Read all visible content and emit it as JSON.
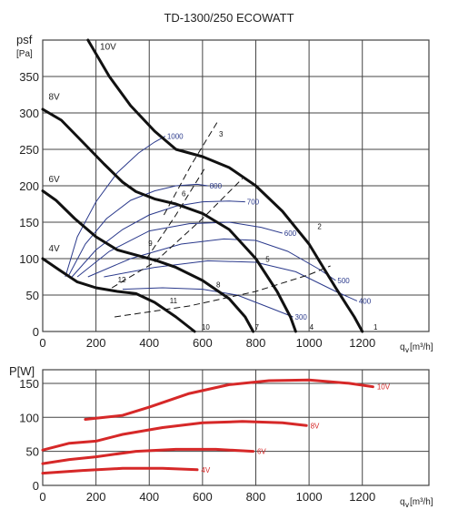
{
  "title": "TD-1300/250 ECOWATT",
  "colors": {
    "grid": "#444444",
    "pressure_curve": "#111111",
    "iso_line": "#2b3a8c",
    "system_line": "#111111",
    "power_curve": "#d62828",
    "power_label": "#d62828"
  },
  "chart_data": [
    {
      "type": "line",
      "title": "TD-1300/250 ECOWATT",
      "ylabel_top": "psf",
      "ylabel_unit": "[Pa]",
      "xlabel_prefix": "q",
      "xlabel_sub": "v",
      "xlabel_unit": "[m³/h]",
      "xlim": [
        0,
        1450
      ],
      "ylim": [
        0,
        400
      ],
      "x_ticks": [
        0,
        200,
        400,
        600,
        800,
        1000,
        1200
      ],
      "y_ticks": [
        0,
        50,
        100,
        150,
        200,
        250,
        300,
        350
      ],
      "grid": true,
      "series": [
        {
          "name": "10V",
          "points": [
            [
              170,
              400
            ],
            [
              250,
              350
            ],
            [
              330,
              310
            ],
            [
              420,
              275
            ],
            [
              500,
              250
            ],
            [
              600,
              240
            ],
            [
              700,
              225
            ],
            [
              800,
              200
            ],
            [
              900,
              165
            ],
            [
              1000,
              120
            ],
            [
              1100,
              60
            ],
            [
              1170,
              20
            ],
            [
              1200,
              0
            ]
          ]
        },
        {
          "name": "8V",
          "points": [
            [
              0,
              305
            ],
            [
              70,
              290
            ],
            [
              150,
              260
            ],
            [
              230,
              230
            ],
            [
              300,
              205
            ],
            [
              350,
              192
            ],
            [
              420,
              182
            ],
            [
              500,
              175
            ],
            [
              600,
              162
            ],
            [
              700,
              140
            ],
            [
              800,
              100
            ],
            [
              880,
              55
            ],
            [
              930,
              20
            ],
            [
              950,
              0
            ]
          ]
        },
        {
          "name": "6V",
          "points": [
            [
              0,
              193
            ],
            [
              50,
              180
            ],
            [
              120,
              155
            ],
            [
              200,
              130
            ],
            [
              280,
              112
            ],
            [
              360,
              104
            ],
            [
              430,
              97
            ],
            [
              500,
              88
            ],
            [
              600,
              70
            ],
            [
              700,
              45
            ],
            [
              760,
              20
            ],
            [
              790,
              0
            ]
          ]
        },
        {
          "name": "4V",
          "points": [
            [
              0,
              100
            ],
            [
              60,
              85
            ],
            [
              130,
              68
            ],
            [
              200,
              60
            ],
            [
              280,
              55
            ],
            [
              350,
              52
            ],
            [
              420,
              40
            ],
            [
              500,
              20
            ],
            [
              570,
              0
            ]
          ]
        }
      ],
      "iso_lines": [
        {
          "label": "1000",
          "points": [
            [
              85,
              75
            ],
            [
              130,
              130
            ],
            [
              200,
              178
            ],
            [
              280,
              218
            ],
            [
              360,
              245
            ],
            [
              420,
              260
            ],
            [
              460,
              268
            ]
          ]
        },
        {
          "label": "800",
          "points": [
            [
              95,
              75
            ],
            [
              160,
              120
            ],
            [
              240,
              155
            ],
            [
              330,
              180
            ],
            [
              420,
              193
            ],
            [
              500,
              200
            ],
            [
              580,
              202
            ],
            [
              620,
              200
            ]
          ]
        },
        {
          "label": "700",
          "points": [
            [
              110,
              75
            ],
            [
              200,
              112
            ],
            [
              300,
              140
            ],
            [
              400,
              160
            ],
            [
              500,
              172
            ],
            [
              600,
              178
            ],
            [
              700,
              179
            ],
            [
              760,
              178
            ]
          ]
        },
        {
          "label": "600",
          "points": [
            [
              130,
              75
            ],
            [
              250,
              110
            ],
            [
              400,
              138
            ],
            [
              550,
              148
            ],
            [
              700,
              150
            ],
            [
              820,
              143
            ],
            [
              900,
              135
            ]
          ]
        },
        {
          "label": "500",
          "points": [
            [
              170,
              75
            ],
            [
              330,
              100
            ],
            [
              520,
              120
            ],
            [
              680,
              127
            ],
            [
              800,
              125
            ],
            [
              920,
              110
            ],
            [
              1040,
              85
            ],
            [
              1100,
              70
            ]
          ]
        },
        {
          "label": "400",
          "points": [
            [
              230,
              75
            ],
            [
              420,
              88
            ],
            [
              620,
              97
            ],
            [
              800,
              95
            ],
            [
              950,
              82
            ],
            [
              1100,
              55
            ],
            [
              1180,
              42
            ]
          ]
        },
        {
          "label": "300",
          "points": [
            [
              300,
              58
            ],
            [
              450,
              60
            ],
            [
              600,
              58
            ],
            [
              730,
              50
            ],
            [
              850,
              33
            ],
            [
              940,
              20
            ]
          ]
        }
      ],
      "system_lines": [
        {
          "label": "11",
          "points": [
            [
              270,
              20
            ],
            [
              550,
              35
            ],
            [
              800,
              55
            ],
            [
              1000,
              78
            ],
            [
              1080,
              90
            ]
          ]
        },
        {
          "label": "12",
          "points": [
            [
              260,
              60
            ],
            [
              420,
              95
            ],
            [
              600,
              155
            ],
            [
              750,
              210
            ]
          ]
        },
        {
          "label": "9",
          "points": [
            [
              390,
              100
            ],
            [
              500,
              160
            ],
            [
              610,
              225
            ]
          ]
        },
        {
          "label": "6",
          "points": [
            [
              455,
              160
            ],
            [
              560,
              230
            ],
            [
              660,
              290
            ]
          ]
        }
      ],
      "point_labels": [
        {
          "label": "1",
          "x": 1235,
          "y": 0
        },
        {
          "label": "2",
          "x": 1025,
          "y": 138
        },
        {
          "label": "3",
          "x": 655,
          "y": 265
        },
        {
          "label": "4",
          "x": 995,
          "y": 0
        },
        {
          "label": "5",
          "x": 830,
          "y": 93
        },
        {
          "label": "6",
          "x": 515,
          "y": 183
        },
        {
          "label": "7",
          "x": 790,
          "y": 0
        },
        {
          "label": "8",
          "x": 645,
          "y": 58
        },
        {
          "label": "9",
          "x": 390,
          "y": 115
        },
        {
          "label": "10",
          "x": 590,
          "y": 0
        },
        {
          "label": "11",
          "x": 470,
          "y": 36
        },
        {
          "label": "12",
          "x": 275,
          "y": 65
        }
      ],
      "series_labels": [
        {
          "label": "10V",
          "x": 215,
          "y": 387
        },
        {
          "label": "8V",
          "x": 22,
          "y": 318
        },
        {
          "label": "6V",
          "x": 22,
          "y": 205
        },
        {
          "label": "4V",
          "x": 22,
          "y": 110
        }
      ]
    },
    {
      "type": "line",
      "ylabel": "P[W]",
      "xlabel_prefix": "q",
      "xlabel_sub": "v",
      "xlabel_unit": "[m³/h]",
      "xlim": [
        0,
        1450
      ],
      "ylim": [
        0,
        170
      ],
      "x_ticks": [
        0,
        200,
        400,
        600,
        800,
        1000,
        1200
      ],
      "y_ticks": [
        0,
        50,
        100,
        150
      ],
      "grid": true,
      "series": [
        {
          "name": "10V",
          "points": [
            [
              160,
              97
            ],
            [
              300,
              103
            ],
            [
              400,
              115
            ],
            [
              550,
              135
            ],
            [
              700,
              148
            ],
            [
              850,
              154
            ],
            [
              1000,
              155
            ],
            [
              1150,
              150
            ],
            [
              1240,
              145
            ]
          ]
        },
        {
          "name": "8V",
          "points": [
            [
              0,
              52
            ],
            [
              100,
              62
            ],
            [
              200,
              65
            ],
            [
              300,
              75
            ],
            [
              450,
              85
            ],
            [
              600,
              92
            ],
            [
              750,
              94
            ],
            [
              900,
              92
            ],
            [
              990,
              88
            ]
          ]
        },
        {
          "name": "6V",
          "points": [
            [
              0,
              32
            ],
            [
              100,
              38
            ],
            [
              200,
              42
            ],
            [
              350,
              50
            ],
            [
              500,
              53
            ],
            [
              650,
              53
            ],
            [
              790,
              50
            ]
          ]
        },
        {
          "name": "4V",
          "points": [
            [
              0,
              18
            ],
            [
              150,
              22
            ],
            [
              300,
              25
            ],
            [
              450,
              25
            ],
            [
              580,
              23
            ]
          ]
        }
      ],
      "series_labels": [
        {
          "label": "10V",
          "x": 1255,
          "y": 145
        },
        {
          "label": "8V",
          "x": 1005,
          "y": 88
        },
        {
          "label": "6V",
          "x": 805,
          "y": 50
        },
        {
          "label": "4V",
          "x": 595,
          "y": 23
        }
      ]
    }
  ]
}
